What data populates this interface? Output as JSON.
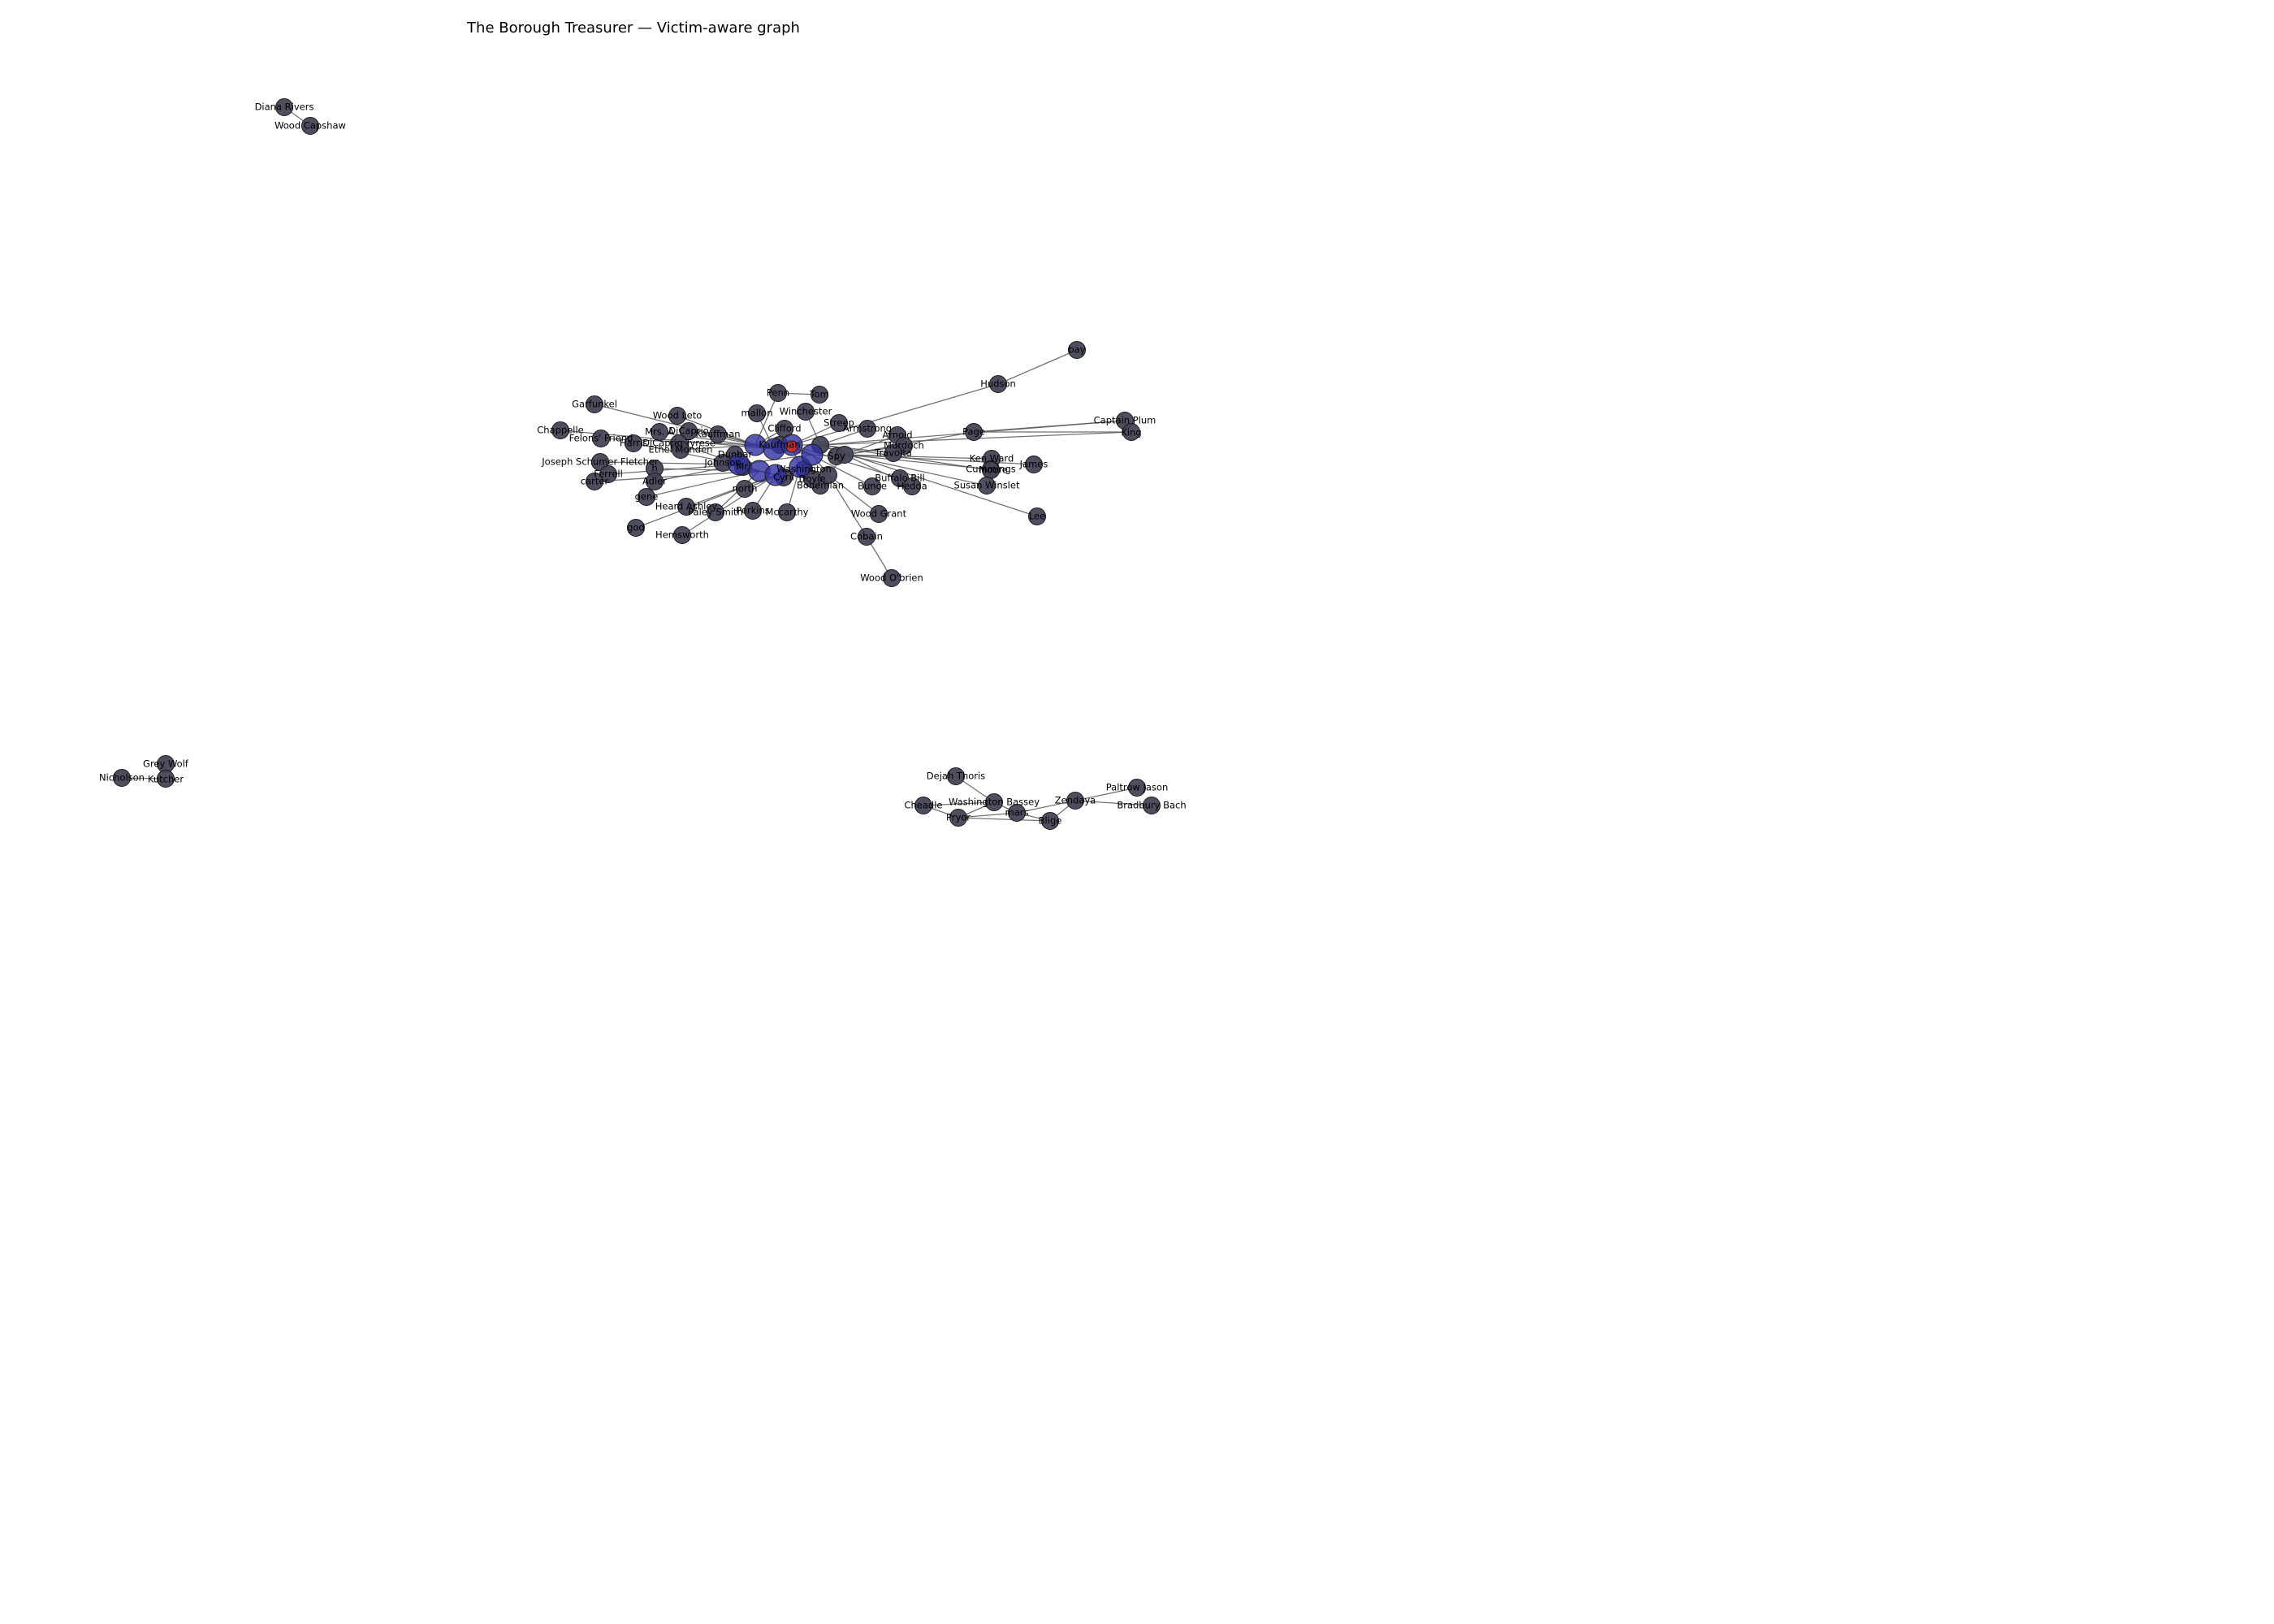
{
  "title": "The Borough Treasurer — Victim-aware graph",
  "colors": {
    "node": "#454556",
    "hub": "#2f2fa0",
    "victim": "#c8322e",
    "edge": "#5a5a5a"
  },
  "graph": {
    "nodes": [
      {
        "id": "dianarivers",
        "label": "Diana Rivers"
      },
      {
        "id": "woodcapshaw",
        "label": "Wood Capshaw"
      },
      {
        "id": "greywolf",
        "label": "Grey Wolf"
      },
      {
        "id": "nicholson",
        "label": "Nicholson"
      },
      {
        "id": "kutcher",
        "label": "Kutcher"
      },
      {
        "id": "bay",
        "label": "bay"
      },
      {
        "id": "hudson",
        "label": "Hudson"
      },
      {
        "id": "captainplum",
        "label": "Captain Plum"
      },
      {
        "id": "king",
        "label": "King"
      },
      {
        "id": "page",
        "label": "Page"
      },
      {
        "id": "penn",
        "label": "Penn"
      },
      {
        "id": "tom",
        "label": "Tom"
      },
      {
        "id": "garfunkel",
        "label": "Garfunkel"
      },
      {
        "id": "chappelle",
        "label": "Chappelle"
      },
      {
        "id": "woodleto",
        "label": "Wood Leto"
      },
      {
        "id": "felonsfriend",
        "label": "Felons' Friend"
      },
      {
        "id": "harris",
        "label": "Harris"
      },
      {
        "id": "mrsa",
        "label": "Mrs. A"
      },
      {
        "id": "dicaprio",
        "label": "DiCaprio"
      },
      {
        "id": "kauffman",
        "label": "Kauffman"
      },
      {
        "id": "dicaprioreese",
        "label": "DiCaprio Tyrese"
      },
      {
        "id": "ethelmonden",
        "label": "Ethel Monden"
      },
      {
        "id": "mallon",
        "label": "mallon"
      },
      {
        "id": "winchester",
        "label": "Winchester"
      },
      {
        "id": "clifford",
        "label": "Clifford"
      },
      {
        "id": "streep",
        "label": "Streep"
      },
      {
        "id": "armstrong",
        "label": "Armstrong"
      },
      {
        "id": "arnold",
        "label": "Arnold"
      },
      {
        "id": "murdoch",
        "label": "Murdoch"
      },
      {
        "id": "travolta",
        "label": "Travolta"
      },
      {
        "id": "kenward",
        "label": "Ken Ward"
      },
      {
        "id": "cummings",
        "label": "Cummings"
      },
      {
        "id": "james",
        "label": "James"
      },
      {
        "id": "moore",
        "label": "Moore"
      },
      {
        "id": "susanwinslet",
        "label": "Susan Winslet"
      },
      {
        "id": "lee",
        "label": "Lee"
      },
      {
        "id": "buffalobill",
        "label": "Buffalo Bill"
      },
      {
        "id": "bunce",
        "label": "Bunce"
      },
      {
        "id": "hedda",
        "label": "Hedda"
      },
      {
        "id": "joseph",
        "label": "Joseph Schumer Fletcher"
      },
      {
        "id": "ferrell",
        "label": "Ferrell"
      },
      {
        "id": "carter",
        "label": "carter"
      },
      {
        "id": "h",
        "label": "h"
      },
      {
        "id": "adler",
        "label": "Adler"
      },
      {
        "id": "gene",
        "label": "gene"
      },
      {
        "id": "god",
        "label": "god"
      },
      {
        "id": "heardashley",
        "label": "Heard Ashley"
      },
      {
        "id": "paleysmith",
        "label": "Paley Smith"
      },
      {
        "id": "perkins",
        "label": "Perkins"
      },
      {
        "id": "mccarthy",
        "label": "Mccarthy"
      },
      {
        "id": "hemsworth",
        "label": "Hemsworth"
      },
      {
        "id": "north",
        "label": "north"
      },
      {
        "id": "bohemian",
        "label": "Bohemian"
      },
      {
        "id": "woodgrant",
        "label": "Wood Grant"
      },
      {
        "id": "cobain",
        "label": "Cobain"
      },
      {
        "id": "woodobrien",
        "label": "Wood O'brien"
      },
      {
        "id": "dejahthoris",
        "label": "Dejah Thoris"
      },
      {
        "id": "washingtonbassey",
        "label": "Washington Bassey"
      },
      {
        "id": "cheadle",
        "label": "Cheadle"
      },
      {
        "id": "pryor",
        "label": "Pryor"
      },
      {
        "id": "mars",
        "label": "mars"
      },
      {
        "id": "blige",
        "label": "Blige"
      },
      {
        "id": "zendaya",
        "label": "Zendaya"
      },
      {
        "id": "paltrowjason",
        "label": "Paltrow Jason"
      },
      {
        "id": "bradburybach",
        "label": "Bradbury Bach"
      },
      {
        "id": "washington",
        "label": "Washington"
      },
      {
        "id": "dunbar",
        "label": "Dunbar"
      },
      {
        "id": "johnson",
        "label": "Johnson"
      },
      {
        "id": "mr",
        "label": "Mr."
      },
      {
        "id": "cyril",
        "label": "Cyril"
      },
      {
        "id": "doyle",
        "label": "Doyle"
      },
      {
        "id": "spy",
        "label": "Spy"
      },
      {
        "id": "kaufman",
        "label": "Kaufman"
      },
      {
        "id": "c1",
        "label": ""
      },
      {
        "id": "c2",
        "label": ""
      },
      {
        "id": "c3",
        "label": ""
      },
      {
        "id": "c4",
        "label": ""
      },
      {
        "id": "c5",
        "label": ""
      },
      {
        "id": "c6",
        "label": ""
      },
      {
        "id": "c7",
        "label": ""
      },
      {
        "id": "c8",
        "label": ""
      },
      {
        "id": "c9",
        "label": ""
      },
      {
        "id": "c10",
        "label": ""
      },
      {
        "id": "c11",
        "label": ""
      },
      {
        "id": "c12",
        "label": ""
      }
    ],
    "edges": [
      [
        "dianarivers",
        "woodcapshaw"
      ],
      [
        "greywolf",
        "kutcher"
      ],
      [
        "nicholson",
        "kutcher"
      ],
      [
        "bay",
        "hudson"
      ],
      [
        "hudson",
        "c3"
      ],
      [
        "captainplum",
        "page"
      ],
      [
        "king",
        "page"
      ],
      [
        "captainplum",
        "c4"
      ],
      [
        "king",
        "c4"
      ],
      [
        "page",
        "c5"
      ],
      [
        "penn",
        "tom"
      ],
      [
        "penn",
        "c1"
      ],
      [
        "garfunkel",
        "c2"
      ],
      [
        "chappelle",
        "c2"
      ],
      [
        "felonsfriend",
        "c1"
      ],
      [
        "harris",
        "c6"
      ],
      [
        "woodleto",
        "c1"
      ],
      [
        "mrsa",
        "c2"
      ],
      [
        "dicaprio",
        "c1"
      ],
      [
        "kauffman",
        "c2"
      ],
      [
        "dicaprioreese",
        "c6"
      ],
      [
        "ethelmonden",
        "c1"
      ],
      [
        "mallon",
        "c2"
      ],
      [
        "winchester",
        "c4"
      ],
      [
        "clifford",
        "c1"
      ],
      [
        "streep",
        "c3"
      ],
      [
        "armstrong",
        "c4"
      ],
      [
        "arnold",
        "c5"
      ],
      [
        "murdoch",
        "c5"
      ],
      [
        "travolta",
        "c4"
      ],
      [
        "kenward",
        "c5"
      ],
      [
        "cummings",
        "c5"
      ],
      [
        "james",
        "c5"
      ],
      [
        "moore",
        "c4"
      ],
      [
        "susanwinslet",
        "c5"
      ],
      [
        "lee",
        "c4"
      ],
      [
        "buffalobill",
        "c3"
      ],
      [
        "bunce",
        "c3"
      ],
      [
        "hedda",
        "c5"
      ],
      [
        "joseph",
        "c6"
      ],
      [
        "ferrell",
        "c6"
      ],
      [
        "carter",
        "c7"
      ],
      [
        "h",
        "c7"
      ],
      [
        "adler",
        "c6"
      ],
      [
        "gene",
        "c7"
      ],
      [
        "god",
        "c8"
      ],
      [
        "heardashley",
        "c8"
      ],
      [
        "paleysmith",
        "c7"
      ],
      [
        "perkins",
        "c8"
      ],
      [
        "mccarthy",
        "c9"
      ],
      [
        "hemsworth",
        "c8"
      ],
      [
        "north",
        "c9"
      ],
      [
        "bohemian",
        "c9"
      ],
      [
        "woodgrant",
        "c10"
      ],
      [
        "cobain",
        "c10"
      ],
      [
        "cobain",
        "woodobrien"
      ],
      [
        "washington",
        "c9"
      ],
      [
        "dunbar",
        "c6"
      ],
      [
        "johnson",
        "c7"
      ],
      [
        "mr",
        "c8"
      ],
      [
        "cyril",
        "c9"
      ],
      [
        "doyle",
        "c10"
      ],
      [
        "spy",
        "c11"
      ],
      [
        "kaufman",
        "c11"
      ],
      [
        "c1",
        "c2"
      ],
      [
        "c2",
        "c3"
      ],
      [
        "c3",
        "c4"
      ],
      [
        "c4",
        "c5"
      ],
      [
        "c5",
        "c10"
      ],
      [
        "c6",
        "c7"
      ],
      [
        "c7",
        "c8"
      ],
      [
        "c8",
        "c9"
      ],
      [
        "c9",
        "c10"
      ],
      [
        "c11",
        "c12"
      ],
      [
        "c1",
        "c12"
      ],
      [
        "c2",
        "c11"
      ],
      [
        "c3",
        "c12"
      ],
      [
        "c6",
        "c11"
      ],
      [
        "c9",
        "c12"
      ],
      [
        "c10",
        "c11"
      ],
      [
        "dejahthoris",
        "washingtonbassey"
      ],
      [
        "washingtonbassey",
        "cheadle"
      ],
      [
        "washingtonbassey",
        "mars"
      ],
      [
        "washingtonbassey",
        "pryor"
      ],
      [
        "cheadle",
        "pryor"
      ],
      [
        "pryor",
        "mars"
      ],
      [
        "mars",
        "zendaya"
      ],
      [
        "mars",
        "blige"
      ],
      [
        "pryor",
        "blige"
      ],
      [
        "blige",
        "zendaya"
      ],
      [
        "zendaya",
        "paltrowjason"
      ],
      [
        "zendaya",
        "bradburybach"
      ]
    ],
    "hubs": [
      "c1",
      "c2",
      "c3",
      "c6",
      "c7",
      "c8",
      "c9",
      "c11"
    ],
    "victim": "c12"
  }
}
